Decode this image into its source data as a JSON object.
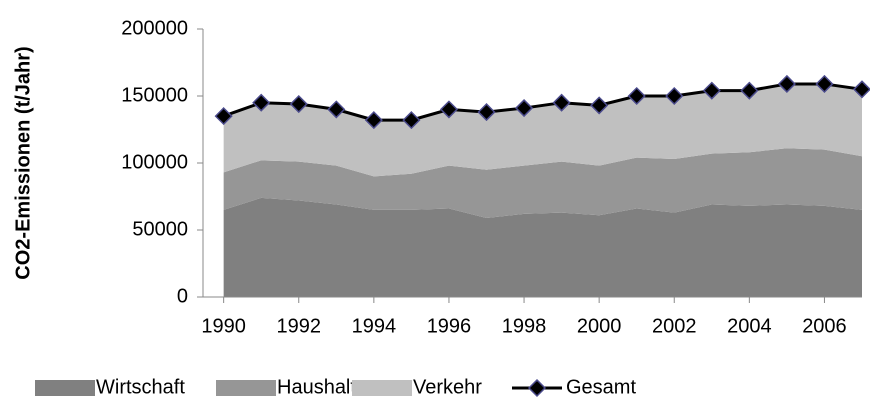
{
  "chart_data": {
    "type": "area",
    "stacked": true,
    "y_label": "CO2-Emissionen (t/Jahr)",
    "x": [
      1990,
      1991,
      1992,
      1993,
      1994,
      1995,
      1996,
      1997,
      1998,
      1999,
      2000,
      2001,
      2002,
      2003,
      2004,
      2005,
      2006,
      2007
    ],
    "xlim": [
      1989.45,
      2007
    ],
    "xticks": [
      1990,
      1992,
      1994,
      1996,
      1998,
      2000,
      2002,
      2004,
      2006
    ],
    "ylim": [
      0,
      200000
    ],
    "yticks": [
      0,
      50000,
      100000,
      150000,
      200000
    ],
    "series": [
      {
        "name": "Wirtschaft",
        "color": "#808080",
        "values": [
          65000,
          74000,
          72000,
          69000,
          65000,
          65000,
          66000,
          59000,
          62000,
          63000,
          61000,
          66000,
          63000,
          69000,
          68000,
          69000,
          68000,
          65000
        ]
      },
      {
        "name": "Haushalt",
        "color": "#969696",
        "values": [
          28000,
          28000,
          29000,
          29000,
          25000,
          27000,
          32000,
          36000,
          36000,
          38000,
          37000,
          38000,
          40000,
          38000,
          40000,
          42000,
          42000,
          40000
        ]
      },
      {
        "name": "Verkehr",
        "color": "#c0c0c0",
        "values": [
          42000,
          43000,
          43000,
          42000,
          42000,
          40000,
          42000,
          43000,
          43000,
          44000,
          45000,
          46000,
          47000,
          47000,
          46000,
          48000,
          49000,
          50000
        ]
      },
      {
        "name": "Gesamt",
        "type": "line",
        "color": "#000000",
        "marker_edge": "#4b4b8c",
        "values": [
          135000,
          145000,
          144000,
          140000,
          132000,
          132000,
          140000,
          138000,
          141000,
          145000,
          143000,
          150000,
          150000,
          154000,
          154000,
          159000,
          159000,
          155000
        ]
      }
    ]
  }
}
